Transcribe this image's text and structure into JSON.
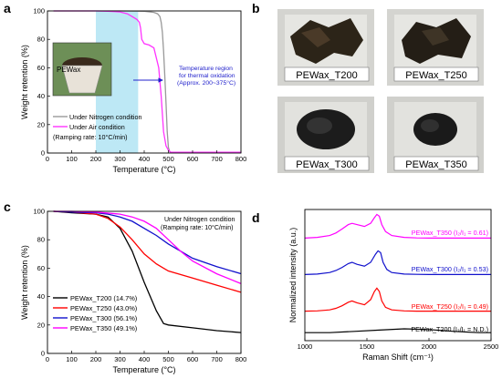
{
  "panels": {
    "a": {
      "letter": "a",
      "chart_data": {
        "type": "line",
        "xlabel": "Temperature (°C)",
        "ylabel": "Weight retention (%)",
        "xlim": [
          0,
          800
        ],
        "ylim": [
          0,
          100
        ],
        "xticks": [
          0,
          100,
          200,
          300,
          400,
          500,
          600,
          700,
          800
        ],
        "yticks": [
          0,
          20,
          40,
          60,
          80,
          100
        ],
        "series": [
          {
            "name": "Under Nitrogen condition",
            "color": "#999999",
            "x": [
              25,
              300,
              400,
              440,
              455,
              465,
              470,
              475,
              480,
              485,
              490,
              495,
              500,
              505,
              510,
              800
            ],
            "y": [
              100,
              100,
              99.8,
              99,
              98,
              96,
              92,
              85,
              72,
              55,
              35,
              15,
              4,
              1,
              0.5,
              0.5
            ]
          },
          {
            "name": "Under Air condition",
            "color": "#ff33ff",
            "x": [
              25,
              200,
              250,
              300,
              330,
              350,
              370,
              380,
              385,
              390,
              400,
              420,
              440,
              460,
              470,
              480,
              490,
              500,
              510,
              800
            ],
            "y": [
              100,
              100,
              99.8,
              99.3,
              98,
              96,
              94,
              92,
              88,
              80,
              77,
              76,
              74,
              60,
              40,
              15,
              5,
              2,
              0.5,
              0.5
            ]
          }
        ],
        "shaded_region": {
          "x": [
            200,
            375
          ],
          "color": "#bde8f5"
        },
        "annotation": {
          "line1": "Temperature region",
          "line2": "for thermal oxidation",
          "line3": "(Approx. 200~375°C)",
          "color": "#2222cc"
        },
        "note": "(Ramping rate: 10°C/min)",
        "inset_label": "PEWax"
      }
    },
    "b": {
      "letter": "b",
      "photo_labels": [
        "PEWax_T200",
        "PEWax_T250",
        "PEWax_T300",
        "PEWax_T350"
      ]
    },
    "c": {
      "letter": "c",
      "chart_data": {
        "type": "line",
        "xlabel": "Temperature (°C)",
        "ylabel": "Weight retention (%)",
        "xlim": [
          0,
          800
        ],
        "ylim": [
          0,
          100
        ],
        "xticks": [
          0,
          100,
          200,
          300,
          400,
          500,
          600,
          700,
          800
        ],
        "yticks": [
          0,
          20,
          40,
          60,
          80,
          100
        ],
        "header_line1": "Under Nitrogen condition",
        "header_line2": "(Ramping rate: 10°C/min)",
        "series": [
          {
            "name": "PEWax_T200 (14.7%)",
            "color": "#000000",
            "x": [
              25,
              100,
              200,
              250,
              300,
              350,
              400,
              450,
              480,
              500,
              600,
              700,
              800
            ],
            "y": [
              100,
              99,
              98,
              96,
              88,
              72,
              50,
              30,
              21,
              20,
              18,
              16,
              14.7
            ]
          },
          {
            "name": "PEWax_T250 (43.0%)",
            "color": "#ff0000",
            "x": [
              25,
              100,
              200,
              250,
              300,
              350,
              400,
              450,
              480,
              500,
              600,
              700,
              800
            ],
            "y": [
              100,
              99.5,
              98,
              95,
              89,
              80,
              70,
              63,
              60,
              58,
              53,
              48,
              43
            ]
          },
          {
            "name": "PEWax_T300 (56.1%)",
            "color": "#1010cc",
            "x": [
              25,
              100,
              200,
              250,
              300,
              350,
              400,
              450,
              500,
              550,
              600,
              700,
              800
            ],
            "y": [
              100,
              99.5,
              99,
              98,
              96,
              93,
              88,
              83,
              77,
              72,
              67,
              61,
              56.1
            ]
          },
          {
            "name": "PEWax_T350 (49.1%)",
            "color": "#ff00ff",
            "x": [
              25,
              100,
              200,
              300,
              350,
              400,
              450,
              500,
              550,
              600,
              700,
              800
            ],
            "y": [
              100,
              100,
              99.5,
              98,
              96,
              93,
              88,
              80,
              72,
              65,
              56,
              49.1
            ]
          }
        ]
      }
    },
    "d": {
      "letter": "d",
      "chart_data": {
        "type": "line",
        "xlabel": "Raman Shift (cm⁻¹)",
        "ylabel": "Normalized intensity (a.u.)",
        "xlim": [
          1000,
          2500
        ],
        "xticks": [
          1000,
          1500,
          2000,
          2500
        ],
        "series": [
          {
            "name": "PEWax_T350",
            "ratio": "0.61",
            "color": "#ff00ff",
            "offset": 3,
            "x": [
              1000,
              1100,
              1200,
              1250,
              1300,
              1350,
              1380,
              1420,
              1480,
              1530,
              1560,
              1580,
              1600,
              1620,
              1650,
              1700,
              1800,
              1900,
              2000,
              2100,
              2200,
              2300,
              2400,
              2500
            ],
            "y": [
              0.02,
              0.05,
              0.12,
              0.22,
              0.38,
              0.55,
              0.6,
              0.55,
              0.48,
              0.6,
              0.82,
              0.95,
              0.88,
              0.55,
              0.28,
              0.12,
              0.05,
              0.03,
              0.02,
              0.02,
              0.02,
              0.02,
              0.02,
              0.02
            ]
          },
          {
            "name": "PEWax_T300",
            "ratio": "0.53",
            "color": "#1010cc",
            "offset": 2,
            "x": [
              1000,
              1100,
              1200,
              1250,
              1300,
              1350,
              1380,
              1420,
              1480,
              1530,
              1570,
              1590,
              1610,
              1630,
              1660,
              1700,
              1800,
              1900,
              2000,
              2100,
              2200,
              2300,
              2400,
              2500
            ],
            "y": [
              0.02,
              0.04,
              0.1,
              0.18,
              0.3,
              0.45,
              0.5,
              0.42,
              0.35,
              0.5,
              0.82,
              0.95,
              0.88,
              0.5,
              0.22,
              0.1,
              0.04,
              0.03,
              0.02,
              0.02,
              0.02,
              0.02,
              0.02,
              0.02
            ]
          },
          {
            "name": "PEWax_T250",
            "ratio": "0.49",
            "color": "#ff0000",
            "offset": 1,
            "x": [
              1000,
              1100,
              1200,
              1250,
              1300,
              1350,
              1380,
              1420,
              1480,
              1530,
              1560,
              1580,
              1600,
              1620,
              1650,
              1700,
              1800,
              1900,
              2000,
              2100,
              2200,
              2300,
              2400,
              2500
            ],
            "y": [
              0.05,
              0.06,
              0.1,
              0.16,
              0.26,
              0.4,
              0.45,
              0.38,
              0.3,
              0.5,
              0.82,
              0.95,
              0.82,
              0.45,
              0.2,
              0.1,
              0.06,
              0.05,
              0.05,
              0.05,
              0.05,
              0.05,
              0.05,
              0.05
            ]
          },
          {
            "name": "PEWax_T200",
            "ratio": "N.D.",
            "color": "#000000",
            "offset": 0,
            "x": [
              1000,
              1200,
              1400,
              1600,
              1800,
              2000,
              2200,
              2400,
              2500
            ],
            "y": [
              0.1,
              0.1,
              0.15,
              0.2,
              0.25,
              0.22,
              0.15,
              0.1,
              0.1
            ]
          }
        ]
      }
    }
  }
}
